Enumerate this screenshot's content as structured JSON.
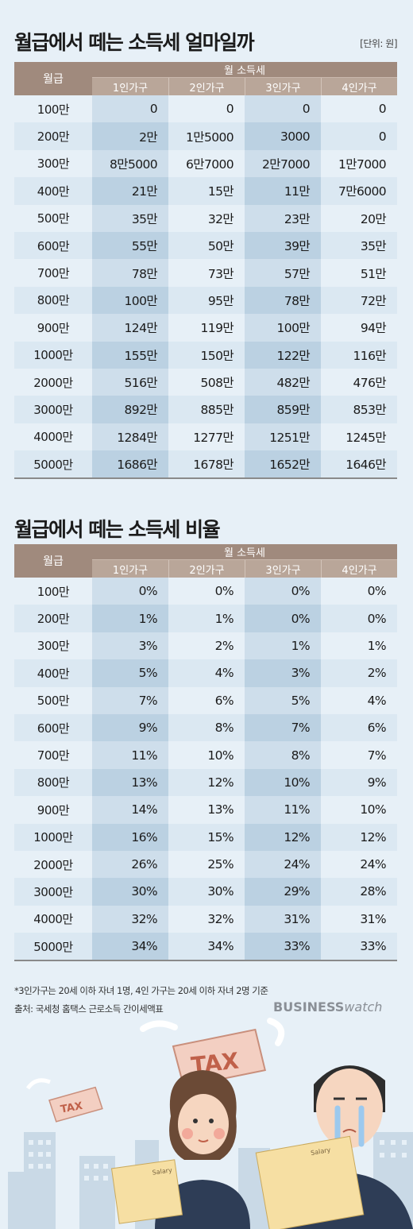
{
  "colors": {
    "background": "#e7f0f7",
    "header_dark": "#a08a7d",
    "header_light": "#b9a699",
    "row_alt": "#dbe8f2"
  },
  "table1": {
    "title": "월급에서 떼는 소득세 얼마일까",
    "unit": "[단위: 원]"
  },
  "table2": {
    "title": "월급에서 떼는 소득세 비율"
  },
  "footnote": "*3인가구는 20세 이하 자녀 1명, 4인 가구는 20세 이하 자녀 2명 기준",
  "source": "출처: 국세청 홈택스 근로소득 간이세액표",
  "brand": {
    "bold": "BUSINESS",
    "light": "watch"
  },
  "illustration": {
    "tag_big": "TAX",
    "tag_small": "TAX",
    "doc_label": "Salary"
  },
  "chart_data": [
    {
      "type": "table",
      "title": "월급에서 떼는 소득세 얼마일까",
      "unit": "[단위: 원]",
      "row_header": "월급",
      "group_header": "월 소득세",
      "columns": [
        "1인가구",
        "2인가구",
        "3인가구",
        "4인가구"
      ],
      "rows": [
        {
          "label": "100만",
          "values": [
            "0",
            "0",
            "0",
            "0"
          ]
        },
        {
          "label": "200만",
          "values": [
            "2만",
            "1만5000",
            "3000",
            "0"
          ]
        },
        {
          "label": "300만",
          "values": [
            "8만5000",
            "6만7000",
            "2만7000",
            "1만7000"
          ]
        },
        {
          "label": "400만",
          "values": [
            "21만",
            "15만",
            "11만",
            "7만6000"
          ]
        },
        {
          "label": "500만",
          "values": [
            "35만",
            "32만",
            "23만",
            "20만"
          ]
        },
        {
          "label": "600만",
          "values": [
            "55만",
            "50만",
            "39만",
            "35만"
          ]
        },
        {
          "label": "700만",
          "values": [
            "78만",
            "73만",
            "57만",
            "51만"
          ]
        },
        {
          "label": "800만",
          "values": [
            "100만",
            "95만",
            "78만",
            "72만"
          ]
        },
        {
          "label": "900만",
          "values": [
            "124만",
            "119만",
            "100만",
            "94만"
          ]
        },
        {
          "label": "1000만",
          "values": [
            "155만",
            "150만",
            "122만",
            "116만"
          ]
        },
        {
          "label": "2000만",
          "values": [
            "516만",
            "508만",
            "482만",
            "476만"
          ]
        },
        {
          "label": "3000만",
          "values": [
            "892만",
            "885만",
            "859만",
            "853만"
          ]
        },
        {
          "label": "4000만",
          "values": [
            "1284만",
            "1277만",
            "1251만",
            "1245만"
          ]
        },
        {
          "label": "5000만",
          "values": [
            "1686만",
            "1678만",
            "1652만",
            "1646만"
          ]
        }
      ]
    },
    {
      "type": "table",
      "title": "월급에서 떼는 소득세 비율",
      "row_header": "월급",
      "group_header": "월 소득세",
      "columns": [
        "1인가구",
        "2인가구",
        "3인가구",
        "4인가구"
      ],
      "rows": [
        {
          "label": "100만",
          "values": [
            "0%",
            "0%",
            "0%",
            "0%"
          ]
        },
        {
          "label": "200만",
          "values": [
            "1%",
            "1%",
            "0%",
            "0%"
          ]
        },
        {
          "label": "300만",
          "values": [
            "3%",
            "2%",
            "1%",
            "1%"
          ]
        },
        {
          "label": "400만",
          "values": [
            "5%",
            "4%",
            "3%",
            "2%"
          ]
        },
        {
          "label": "500만",
          "values": [
            "7%",
            "6%",
            "5%",
            "4%"
          ]
        },
        {
          "label": "600만",
          "values": [
            "9%",
            "8%",
            "7%",
            "6%"
          ]
        },
        {
          "label": "700만",
          "values": [
            "11%",
            "10%",
            "8%",
            "7%"
          ]
        },
        {
          "label": "800만",
          "values": [
            "13%",
            "12%",
            "10%",
            "9%"
          ]
        },
        {
          "label": "900만",
          "values": [
            "14%",
            "13%",
            "11%",
            "10%"
          ]
        },
        {
          "label": "1000만",
          "values": [
            "16%",
            "15%",
            "12%",
            "12%"
          ]
        },
        {
          "label": "2000만",
          "values": [
            "26%",
            "25%",
            "24%",
            "24%"
          ]
        },
        {
          "label": "3000만",
          "values": [
            "30%",
            "30%",
            "29%",
            "28%"
          ]
        },
        {
          "label": "4000만",
          "values": [
            "32%",
            "32%",
            "31%",
            "31%"
          ]
        },
        {
          "label": "5000만",
          "values": [
            "34%",
            "34%",
            "33%",
            "33%"
          ]
        }
      ]
    }
  ]
}
